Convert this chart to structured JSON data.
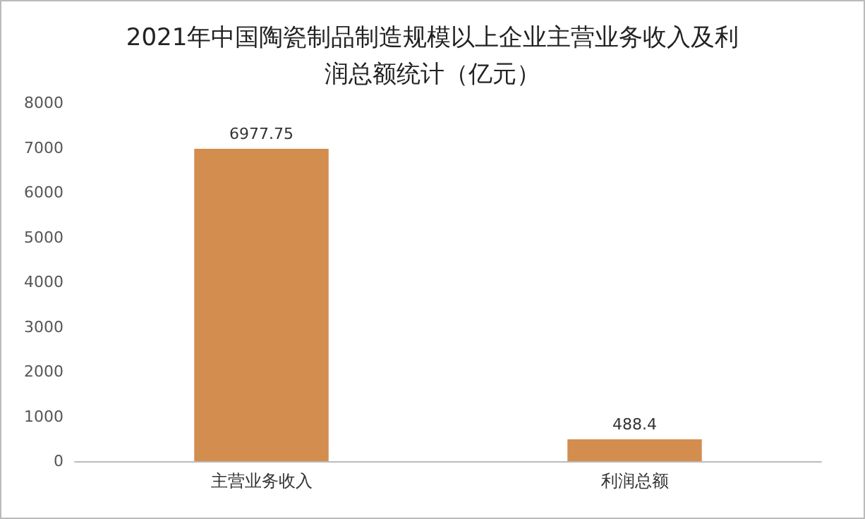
{
  "chart_data": {
    "type": "bar",
    "title": "2021年中国陶瓷制品制造规模以上企业主营业务收入及利润总额统计（亿元）",
    "categories": [
      "主营业务收入",
      "利润总额"
    ],
    "values": [
      6977.75,
      488.4
    ],
    "color": "#d38d4f",
    "ylim": [
      0,
      8000
    ],
    "yticks": [
      0,
      1000,
      2000,
      3000,
      4000,
      5000,
      6000,
      7000,
      8000
    ],
    "grid": false,
    "data_labels": true
  }
}
